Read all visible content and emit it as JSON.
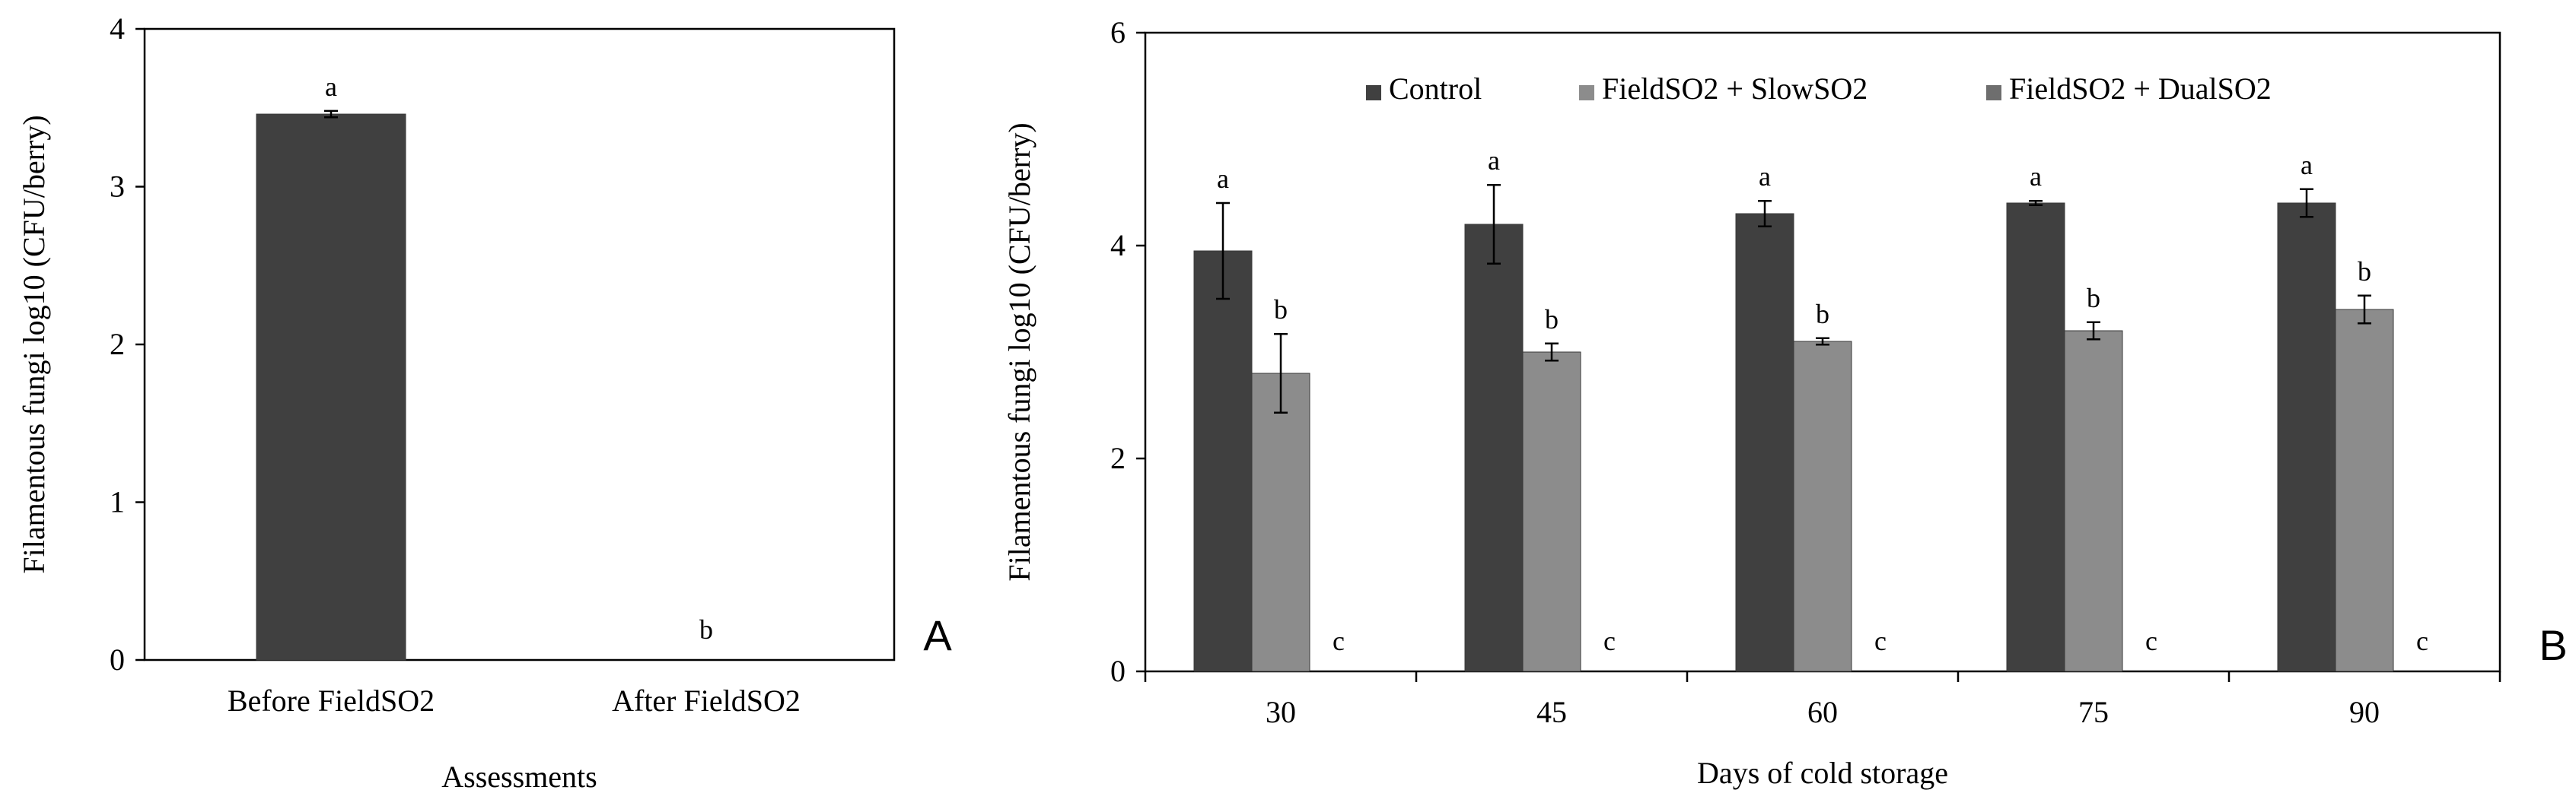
{
  "chart_data": [
    {
      "type": "bar",
      "panel": "A",
      "title": "",
      "xlabel": "Assessments",
      "ylabel": "Filamentous fungi log10 (CFU/berry)",
      "ylim": [
        0,
        4
      ],
      "yticks": [
        "0",
        "1",
        "2",
        "3",
        "4"
      ],
      "grid": false,
      "categories": [
        "Before FieldSO2",
        "After FieldSO2"
      ],
      "series": [
        {
          "name": "Filamentous fungi",
          "color": "#404040",
          "values": [
            3.46,
            0
          ],
          "errors": [
            0.02,
            0
          ],
          "letters": [
            "a",
            "b"
          ]
        }
      ]
    },
    {
      "type": "bar",
      "panel": "B",
      "title": "",
      "xlabel": "Days of cold storage",
      "ylabel": "Filamentous fungi log10 (CFU/berry)",
      "ylim": [
        0,
        6
      ],
      "yticks": [
        "0",
        "2",
        "4",
        "6"
      ],
      "grid": false,
      "legend_position": "top",
      "categories": [
        "30",
        "45",
        "60",
        "75",
        "90"
      ],
      "series": [
        {
          "name": "Control",
          "color": "#404040",
          "values": [
            3.95,
            4.2,
            4.3,
            4.4,
            4.4
          ],
          "errors": [
            0.45,
            0.37,
            0.12,
            0.02,
            0.13
          ],
          "letters": [
            "a",
            "a",
            "a",
            "a",
            "a"
          ]
        },
        {
          "name": "FieldSO2 + SlowSO2",
          "color": "#8c8c8c",
          "values": [
            2.8,
            3.0,
            3.1,
            3.2,
            3.4
          ],
          "errors": [
            0.37,
            0.08,
            0.03,
            0.08,
            0.13
          ],
          "letters": [
            "b",
            "b",
            "b",
            "b",
            "b"
          ]
        },
        {
          "name": "FieldSO2 + DualSO2",
          "color": "#6e6e6e",
          "values": [
            0,
            0,
            0,
            0,
            0
          ],
          "errors": [
            0,
            0,
            0,
            0,
            0
          ],
          "letters": [
            "c",
            "c",
            "c",
            "c",
            "c"
          ]
        }
      ]
    }
  ]
}
